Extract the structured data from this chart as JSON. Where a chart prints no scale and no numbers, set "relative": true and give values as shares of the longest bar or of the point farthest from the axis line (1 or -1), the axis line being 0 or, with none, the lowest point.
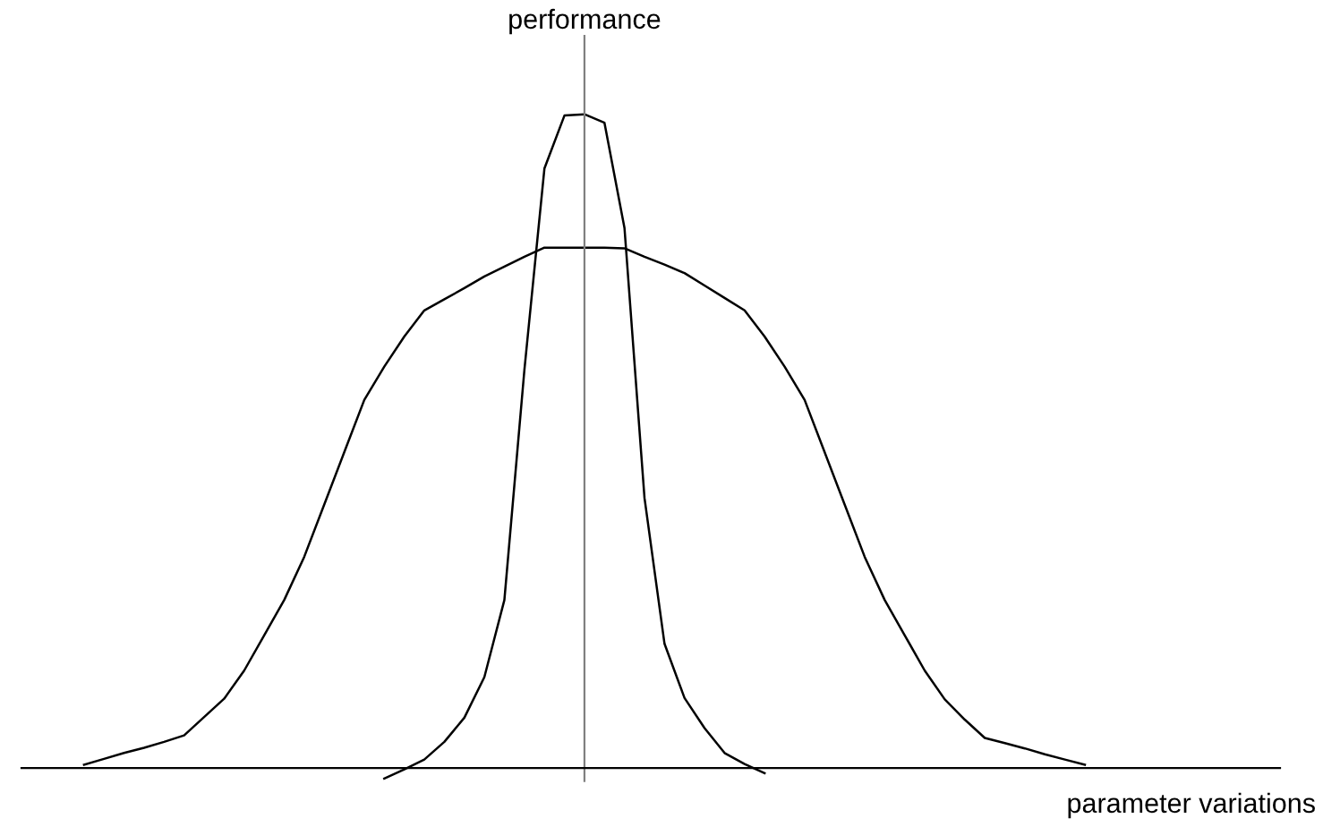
{
  "chart_data": {
    "type": "line",
    "relative": true,
    "xlabel": "parameter variations",
    "ylabel": "performance",
    "marker": "none",
    "line_style": "solid",
    "categories": [
      null,
      null,
      null,
      null,
      null,
      null,
      null,
      null,
      null,
      null,
      null,
      null,
      null,
      null,
      null,
      null,
      null,
      null,
      null,
      null,
      null,
      null,
      null,
      null,
      null,
      null,
      null,
      null,
      null,
      null,
      null,
      null,
      null,
      null,
      null,
      null,
      null,
      null,
      null,
      null,
      null,
      null,
      null,
      null,
      null,
      null,
      null,
      null,
      null,
      null,
      null
    ],
    "series": [
      {
        "color": "#000000",
        "values": [
          0.005,
          0.014,
          0.023,
          0.031,
          0.04,
          0.05,
          0.078,
          0.106,
          0.149,
          0.203,
          0.257,
          0.323,
          0.403,
          0.483,
          0.563,
          0.614,
          0.66,
          0.7,
          0.717,
          0.734,
          0.752,
          0.767,
          0.782,
          0.796,
          0.796,
          0.796,
          0.796,
          0.795,
          0.782,
          0.77,
          0.757,
          0.738,
          0.719,
          0.7,
          0.66,
          0.614,
          0.563,
          0.483,
          0.403,
          0.323,
          0.257,
          0.203,
          0.149,
          0.105,
          0.074,
          0.046,
          0.038,
          0.03,
          0.021,
          0.013,
          0.005
        ]
      },
      {
        "color": "#000000",
        "values": [
          null,
          null,
          null,
          null,
          null,
          null,
          null,
          null,
          null,
          null,
          null,
          null,
          null,
          null,
          null,
          -0.016,
          -0.002,
          0.013,
          0.04,
          0.077,
          0.139,
          0.257,
          0.609,
          0.917,
          0.998,
          1.0,
          0.987,
          0.826,
          0.413,
          0.19,
          0.107,
          0.061,
          0.023,
          0.006,
          -0.008,
          null,
          null,
          null,
          null,
          null,
          null,
          null,
          null,
          null,
          null,
          null,
          null,
          null,
          null,
          null,
          null
        ]
      }
    ]
  }
}
